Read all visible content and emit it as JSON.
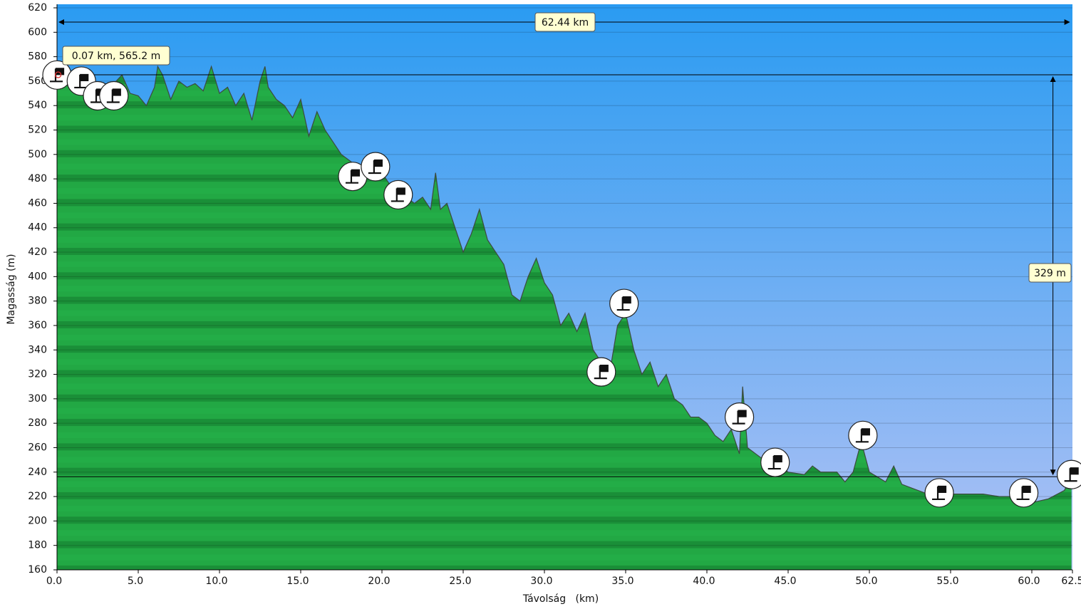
{
  "chart_data": {
    "type": "area",
    "x_label": "Távolság   (km)",
    "y_label": "Magasság (m)",
    "x": [
      0,
      0.5,
      1,
      1.5,
      2,
      2.5,
      3,
      3.5,
      4,
      4.5,
      5,
      5.5,
      6,
      6.2,
      6.5,
      7,
      7.5,
      8,
      8.5,
      9,
      9.5,
      10,
      10.5,
      11,
      11.5,
      12,
      12.5,
      12.8,
      13,
      13.5,
      14,
      14.5,
      15,
      15.5,
      16,
      16.5,
      17,
      17.5,
      18,
      18.5,
      19,
      19.5,
      20,
      20.5,
      21,
      21.5,
      22,
      22.5,
      23,
      23.3,
      23.6,
      24,
      24.5,
      25,
      25.5,
      26,
      26.5,
      27,
      27.5,
      28,
      28.5,
      29,
      29.5,
      30,
      30.5,
      31,
      31.5,
      32,
      32.5,
      33,
      33.5,
      34,
      34.5,
      35,
      35.5,
      36,
      36.5,
      37,
      37.5,
      38,
      38.5,
      39,
      39.5,
      40,
      40.5,
      41,
      41.5,
      42,
      42.2,
      42.5,
      43,
      43.5,
      44,
      44.5,
      45,
      46,
      46.5,
      47,
      48,
      48.5,
      49,
      49.5,
      50,
      51,
      51.5,
      52,
      53,
      54,
      55,
      56,
      57,
      58,
      59,
      60,
      61,
      62,
      62.44
    ],
    "series": [
      {
        "name": "Magasság",
        "color": "#1f9e3c",
        "values": [
          565,
          560,
          555,
          560,
          555,
          553,
          545,
          558,
          565,
          550,
          548,
          540,
          555,
          572,
          565,
          545,
          560,
          555,
          558,
          552,
          572,
          550,
          555,
          540,
          550,
          528,
          560,
          572,
          555,
          545,
          540,
          530,
          545,
          515,
          535,
          520,
          510,
          500,
          495,
          490,
          485,
          480,
          485,
          475,
          470,
          465,
          460,
          465,
          455,
          485,
          455,
          460,
          440,
          420,
          435,
          455,
          430,
          420,
          410,
          385,
          380,
          400,
          415,
          395,
          385,
          360,
          370,
          355,
          370,
          340,
          330,
          320,
          360,
          370,
          340,
          320,
          330,
          310,
          320,
          300,
          295,
          285,
          285,
          280,
          270,
          265,
          275,
          255,
          310,
          260,
          255,
          250,
          248,
          245,
          240,
          238,
          245,
          240,
          240,
          232,
          240,
          265,
          240,
          232,
          245,
          230,
          225,
          220,
          222,
          222,
          222,
          220,
          220,
          215,
          218,
          225,
          236
        ]
      }
    ],
    "waypoints": {
      "x": [
        0,
        1.5,
        2.5,
        3.5,
        18.2,
        19.6,
        21,
        34.9,
        33.5,
        42,
        44.2,
        49.6,
        54.3,
        59.5,
        62.44
      ],
      "y": [
        565,
        560,
        548,
        548,
        482,
        490,
        467,
        378,
        322,
        285,
        248,
        270,
        223,
        223,
        238
      ]
    },
    "reference_lines": [
      565.2,
      236.2
    ],
    "distance_line": 62.44,
    "annotations": {
      "distance": "62.44 km",
      "point": "0.07 km, 565.2 m",
      "climb": "329 m"
    },
    "xlim": [
      0,
      62.5
    ],
    "ylim": [
      160,
      620
    ],
    "xticks": [
      {
        "value": 0,
        "label": "0.0"
      },
      {
        "value": 5,
        "label": "5.0"
      },
      {
        "value": 10,
        "label": "10.0"
      },
      {
        "value": 15,
        "label": "15.0"
      },
      {
        "value": 20,
        "label": "20.0"
      },
      {
        "value": 25,
        "label": "25.0"
      },
      {
        "value": 30,
        "label": "30.0"
      },
      {
        "value": 35,
        "label": "35.0"
      },
      {
        "value": 40,
        "label": "40.0"
      },
      {
        "value": 45,
        "label": "45.0"
      },
      {
        "value": 50,
        "label": "50.0"
      },
      {
        "value": 55,
        "label": "55.0"
      },
      {
        "value": 60,
        "label": "60.0"
      },
      62.5
    ],
    "yticks": [
      160,
      180,
      200,
      220,
      240,
      260,
      280,
      300,
      320,
      340,
      360,
      380,
      400,
      420,
      440,
      460,
      480,
      500,
      520,
      540,
      560,
      580,
      600,
      620
    ],
    "grid": true
  }
}
